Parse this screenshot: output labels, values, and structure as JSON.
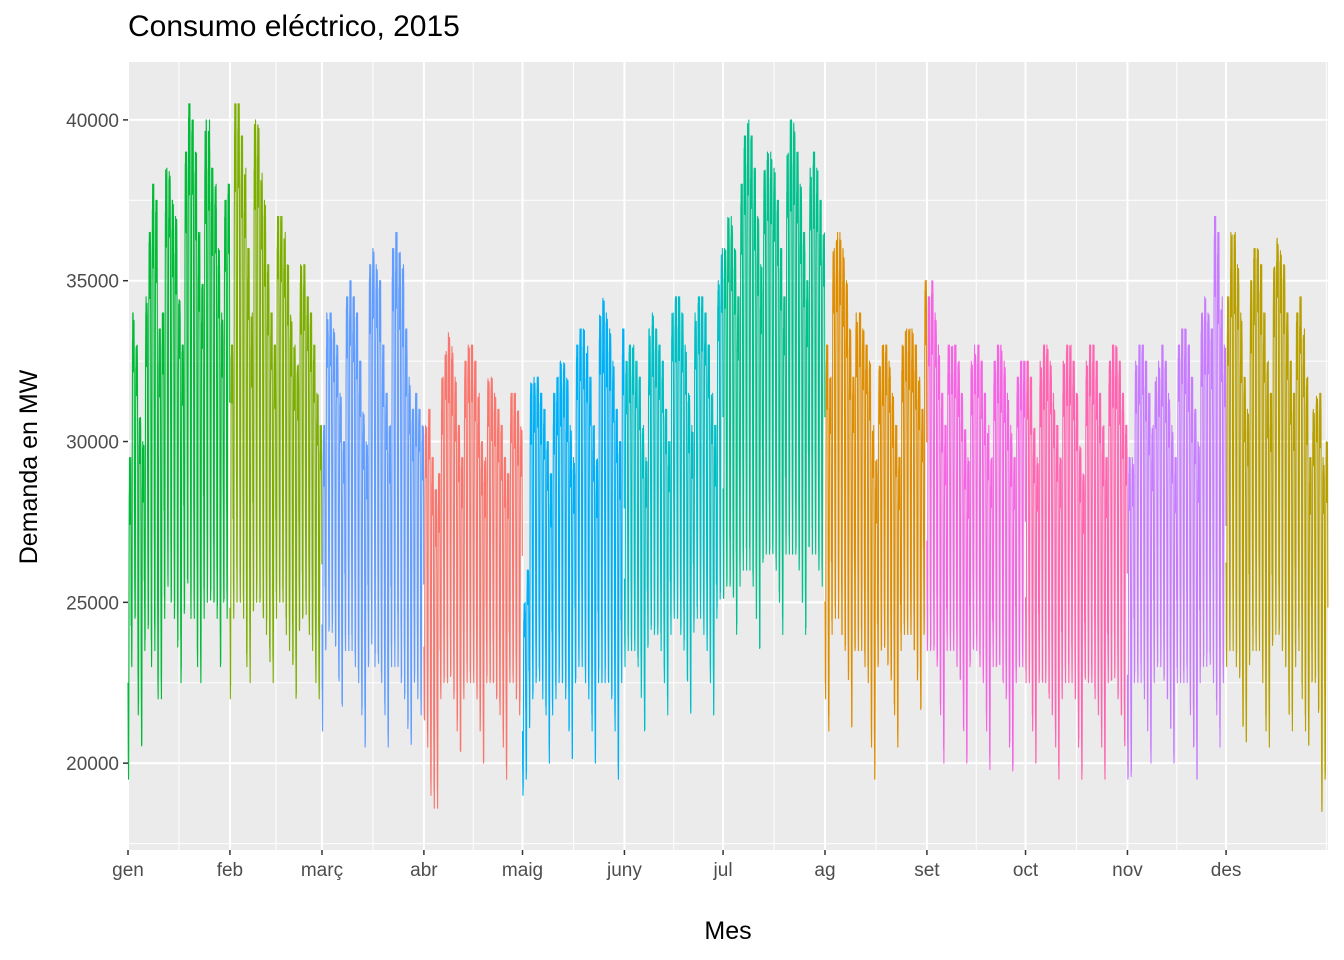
{
  "chart_data": {
    "type": "line",
    "title": "Consumo eléctrico, 2015",
    "xlabel": "Mes",
    "ylabel": "Demanda en MW",
    "x_unit": "day of year 2015 (1 = 1 gen), hourly series",
    "x_range": [
      1,
      366
    ],
    "ylim": [
      17300,
      41800
    ],
    "y_ticks": [
      20000,
      25000,
      30000,
      35000,
      40000
    ],
    "x_ticks": [
      {
        "label": "gen",
        "day": 1
      },
      {
        "label": "feb",
        "day": 32
      },
      {
        "label": "març",
        "day": 60
      },
      {
        "label": "abr",
        "day": 91
      },
      {
        "label": "maig",
        "day": 121
      },
      {
        "label": "juny",
        "day": 152
      },
      {
        "label": "jul",
        "day": 182
      },
      {
        "label": "ag",
        "day": 213
      },
      {
        "label": "set",
        "day": 244
      },
      {
        "label": "oct",
        "day": 274
      },
      {
        "label": "nov",
        "day": 305
      },
      {
        "label": "des",
        "day": 335
      }
    ],
    "grid": true,
    "panel_background": "#ebebeb",
    "legend": "none",
    "series": [
      {
        "name": "gen",
        "color": "#00BA38",
        "start_day": 1,
        "end_day": 32,
        "daily_min": [
          19500,
          23000,
          24500,
          21500,
          20500,
          23500,
          24000,
          23000,
          23500,
          22000,
          22000,
          24500,
          25500,
          25000,
          24500,
          23500,
          22500,
          24500,
          25000,
          24500,
          24500,
          23000,
          22500,
          24500,
          25000,
          25000,
          25000,
          24500,
          23000,
          25000,
          24500
        ],
        "daily_max": [
          29500,
          34000,
          33000,
          31000,
          30000,
          34500,
          36500,
          38000,
          37500,
          33500,
          34000,
          38500,
          38500,
          37500,
          37000,
          34500,
          33000,
          39000,
          40500,
          40000,
          39000,
          36500,
          35000,
          40000,
          40000,
          38500,
          38000,
          36000,
          34000,
          37500,
          38000
        ]
      },
      {
        "name": "feb",
        "color": "#7CAE00",
        "start_day": 32,
        "end_day": 60,
        "daily_min": [
          22000,
          24500,
          25000,
          25000,
          24500,
          23000,
          22500,
          24500,
          25000,
          25000,
          24500,
          24000,
          23000,
          22500,
          24500,
          25000,
          25000,
          24000,
          23500,
          23000,
          22000,
          24000,
          24500,
          24500,
          24000,
          23500,
          22500,
          22000
        ],
        "daily_max": [
          33000,
          40500,
          40500,
          39500,
          38500,
          36000,
          34000,
          40000,
          40000,
          38500,
          37500,
          35500,
          34000,
          33000,
          37000,
          37000,
          36500,
          35500,
          34000,
          33000,
          32500,
          35500,
          35500,
          34500,
          34000,
          33000,
          31500,
          30500
        ]
      },
      {
        "name": "març",
        "color": "#619CFF",
        "start_day": 60,
        "end_day": 91,
        "daily_min": [
          21000,
          23500,
          24000,
          24000,
          23500,
          22500,
          21500,
          23500,
          23500,
          23500,
          23000,
          22500,
          21500,
          20500,
          23000,
          23500,
          23000,
          23000,
          22500,
          21500,
          20500,
          23000,
          23000,
          23000,
          22500,
          22000,
          21000,
          20500,
          22500,
          22000,
          21500
        ],
        "daily_max": [
          30500,
          34000,
          34000,
          33500,
          33000,
          31500,
          30000,
          34500,
          35000,
          34500,
          34000,
          32500,
          31000,
          30000,
          35500,
          36000,
          35500,
          35000,
          33000,
          31500,
          30500,
          36000,
          36500,
          36000,
          35500,
          33500,
          32000,
          31000,
          31500,
          31000,
          30500
        ]
      },
      {
        "name": "abr",
        "color": "#F8766D",
        "start_day": 91,
        "end_day": 121,
        "daily_min": [
          21000,
          20500,
          19000,
          18600,
          18600,
          22000,
          22500,
          22500,
          22500,
          22000,
          21000,
          20000,
          22000,
          22500,
          22500,
          22500,
          22000,
          21000,
          20000,
          22500,
          22500,
          22500,
          22000,
          21500,
          20500,
          19500,
          22500,
          22500,
          22000,
          21500
        ],
        "daily_max": [
          30500,
          31000,
          29500,
          28500,
          29000,
          32000,
          33000,
          33500,
          33000,
          32000,
          30500,
          29500,
          32500,
          33000,
          33000,
          32500,
          31500,
          30000,
          29500,
          32000,
          32000,
          31500,
          31000,
          30500,
          29500,
          29000,
          31500,
          31500,
          31000,
          30500
        ]
      },
      {
        "name": "maig",
        "color": "#00B0F6",
        "start_day": 121,
        "end_day": 152,
        "daily_min": [
          19000,
          19500,
          21000,
          22000,
          22500,
          22500,
          22000,
          21500,
          20000,
          21500,
          22000,
          22500,
          22500,
          22000,
          21000,
          20000,
          22500,
          23000,
          23000,
          22500,
          22000,
          21000,
          20000,
          22500,
          22500,
          22500,
          22500,
          22000,
          21000,
          19500,
          22500
        ],
        "daily_max": [
          25000,
          26000,
          32000,
          32000,
          32000,
          31500,
          31000,
          30000,
          29000,
          31500,
          32000,
          32500,
          32500,
          32000,
          30500,
          29500,
          33000,
          33500,
          33500,
          33000,
          32000,
          30500,
          29500,
          34000,
          34500,
          34000,
          33500,
          32500,
          31000,
          30000,
          33500
        ]
      },
      {
        "name": "juny",
        "color": "#00BFC4",
        "start_day": 152,
        "end_day": 182,
        "daily_min": [
          23000,
          23500,
          23500,
          23500,
          23000,
          22000,
          21000,
          23500,
          24000,
          24000,
          24000,
          23500,
          22500,
          21500,
          24000,
          24500,
          24500,
          24000,
          23500,
          22500,
          21500,
          24000,
          24500,
          24500,
          24000,
          23500,
          22500,
          21500,
          24500,
          25000
        ],
        "daily_max": [
          32500,
          33000,
          33000,
          32500,
          32000,
          30500,
          29500,
          33500,
          34000,
          33500,
          33000,
          32500,
          31000,
          30000,
          34000,
          34500,
          34500,
          34000,
          33000,
          31500,
          30500,
          34000,
          34500,
          34500,
          34000,
          33000,
          31500,
          30500,
          35000,
          36000
        ]
      },
      {
        "name": "jul",
        "color": "#00C08B",
        "start_day": 182,
        "end_day": 213,
        "daily_min": [
          25000,
          25500,
          25500,
          25000,
          24000,
          25500,
          26000,
          26000,
          26000,
          25500,
          24500,
          23500,
          26000,
          26500,
          26500,
          26500,
          26000,
          25000,
          24000,
          26500,
          26500,
          26500,
          26500,
          26000,
          25000,
          24000,
          26500,
          26500,
          26500,
          26000,
          25500
        ],
        "daily_max": [
          36000,
          37000,
          37000,
          36000,
          34500,
          38000,
          39500,
          40000,
          39500,
          38500,
          37000,
          35500,
          38500,
          39000,
          39000,
          38500,
          37500,
          36000,
          34500,
          39000,
          40000,
          40000,
          39000,
          38000,
          36500,
          35000,
          38500,
          39000,
          38500,
          37500,
          36500
        ]
      },
      {
        "name": "ag",
        "color": "#DE8C00",
        "start_day": 213,
        "end_day": 244,
        "daily_min": [
          22000,
          21000,
          24000,
          24500,
          24500,
          24000,
          23500,
          22500,
          21000,
          23500,
          23500,
          23500,
          23000,
          22500,
          20500,
          19500,
          23000,
          23500,
          23500,
          23000,
          22500,
          21500,
          20500,
          23500,
          24000,
          24000,
          24000,
          23500,
          22500,
          21500,
          24000
        ],
        "daily_max": [
          33000,
          32000,
          36000,
          36500,
          36500,
          36000,
          35000,
          33500,
          32000,
          34000,
          34000,
          33500,
          33000,
          32500,
          30500,
          29500,
          32500,
          33000,
          33000,
          32500,
          31500,
          30500,
          29500,
          33000,
          33500,
          33500,
          33500,
          33000,
          32000,
          31000,
          35000
        ]
      },
      {
        "name": "set",
        "color": "#F564E3",
        "start_day": 244,
        "end_day": 274,
        "daily_min": [
          23500,
          23500,
          23500,
          23000,
          21500,
          20000,
          23500,
          23500,
          23500,
          23000,
          22500,
          21000,
          20000,
          23000,
          23500,
          23500,
          23000,
          22500,
          21000,
          19800,
          23000,
          23000,
          23000,
          22500,
          22000,
          20500,
          19500,
          22500,
          23000,
          23000
        ],
        "daily_max": [
          34500,
          35000,
          34000,
          33000,
          31500,
          30500,
          33000,
          33000,
          33000,
          32500,
          31500,
          30500,
          29500,
          32500,
          33000,
          33000,
          32500,
          31500,
          30500,
          29500,
          32500,
          33000,
          33000,
          32500,
          31500,
          30500,
          29500,
          32000,
          32500,
          32500
        ]
      },
      {
        "name": "oct",
        "color": "#FF64B0",
        "start_day": 274,
        "end_day": 305,
        "daily_min": [
          22500,
          22500,
          21000,
          20000,
          22500,
          22500,
          22500,
          22000,
          21500,
          20500,
          19500,
          22000,
          22500,
          22500,
          22500,
          22000,
          20500,
          19500,
          22500,
          22500,
          22500,
          22000,
          21500,
          20500,
          19500,
          22500,
          22500,
          22500,
          22000,
          21500,
          20500
        ],
        "daily_max": [
          32500,
          32000,
          30500,
          29500,
          32500,
          33000,
          33000,
          32500,
          31500,
          30500,
          29500,
          32500,
          33000,
          33000,
          32500,
          31500,
          30000,
          29000,
          32500,
          33000,
          33000,
          32500,
          31500,
          30500,
          29500,
          32500,
          33000,
          33000,
          32500,
          31500,
          30500
        ]
      },
      {
        "name": "nov",
        "color": "#C77CFF",
        "start_day": 305,
        "end_day": 335,
        "daily_min": [
          19500,
          19500,
          22500,
          22500,
          22500,
          22000,
          21000,
          20000,
          22500,
          23000,
          23000,
          22500,
          22000,
          21000,
          20000,
          22500,
          22500,
          22500,
          22500,
          21500,
          20500,
          19500,
          22500,
          23000,
          23000,
          23000,
          22500,
          21500,
          20500,
          22500
        ],
        "daily_max": [
          29500,
          29500,
          32500,
          33000,
          33000,
          32500,
          31500,
          30500,
          32000,
          32500,
          33000,
          32500,
          31500,
          30500,
          29500,
          33000,
          33500,
          33500,
          33000,
          32000,
          31000,
          30000,
          34000,
          34500,
          34000,
          33500,
          37000,
          36500,
          34500,
          33000
        ]
      },
      {
        "name": "des",
        "color": "#B79F00",
        "start_day": 335,
        "end_day": 366,
        "daily_min": [
          23000,
          23500,
          23500,
          23000,
          22500,
          21000,
          20500,
          23000,
          23500,
          23500,
          23500,
          22500,
          21000,
          20500,
          23500,
          24000,
          24000,
          23500,
          23000,
          21500,
          21000,
          23000,
          23500,
          22000,
          21000,
          20500,
          22500,
          22500,
          21500,
          18500,
          19500
        ],
        "daily_max": [
          34500,
          36500,
          36500,
          35500,
          34000,
          32000,
          31000,
          35000,
          36000,
          36000,
          35500,
          34000,
          32500,
          31500,
          35500,
          36500,
          36000,
          35500,
          34000,
          32500,
          31500,
          34000,
          34500,
          33500,
          32000,
          29500,
          31000,
          31500,
          31500,
          29500,
          30000
        ]
      }
    ]
  }
}
